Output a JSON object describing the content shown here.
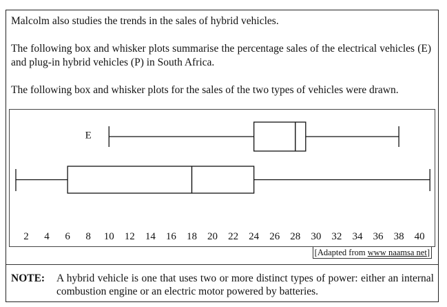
{
  "text": {
    "intro": "Malcolm also studies the trends in the sales of hybrid vehicles.",
    "description": "The following box and whisker plots summarise the percentage sales of the electrical vehicles (E) and plug-in hybrid vehicles (P) in South Africa.",
    "plots_drawn": "The following box and whisker plots for the sales of the two types of vehicles were drawn.",
    "source_prefix": "[Adapted from ",
    "source_link": "www naamsa net",
    "source_suffix": "]",
    "note_label": "NOTE:",
    "note_text": "A hybrid vehicle is one that uses two or more distinct types of power: either an internal combustion engine or an electric motor powered by batteries."
  },
  "chart_data": {
    "type": "boxplot",
    "x_ticks": [
      2,
      4,
      6,
      8,
      10,
      12,
      14,
      16,
      18,
      20,
      22,
      24,
      26,
      28,
      30,
      32,
      34,
      36,
      38,
      40
    ],
    "xlim": [
      2,
      40
    ],
    "series": [
      {
        "name": "E",
        "min": 10,
        "q1": 24,
        "median": 28,
        "q3": 29,
        "max": 38
      },
      {
        "name": "",
        "min": 1,
        "q1": 6,
        "median": 18,
        "q3": 24,
        "max": 41
      }
    ]
  }
}
